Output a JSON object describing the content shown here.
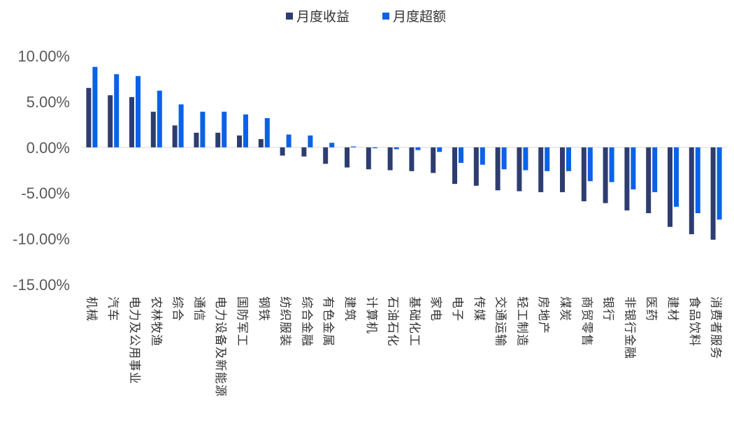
{
  "chart_data": {
    "type": "bar",
    "title": "",
    "xlabel": "",
    "ylabel": "",
    "legend_position": "top-center",
    "grid": false,
    "ylim": [
      -0.15,
      0.1
    ],
    "yticks": [
      0.1,
      0.05,
      0.0,
      -0.05,
      -0.1,
      -0.15
    ],
    "yticklabels": [
      "10.00%",
      "5.00%",
      "0.00%",
      "-5.00%",
      "-10.00%",
      "-15.00%"
    ],
    "categories": [
      "机械",
      "汽车",
      "电力及公用事业",
      "农林牧渔",
      "综合",
      "通信",
      "电力设备及新能源",
      "国防军工",
      "钢铁",
      "纺织服装",
      "综合金融",
      "有色金属",
      "建筑",
      "计算机",
      "石油石化",
      "基础化工",
      "家电",
      "电子",
      "传媒",
      "交通运输",
      "轻工制造",
      "房地产",
      "煤炭",
      "商贸零售",
      "银行",
      "非银行金融",
      "医药",
      "建材",
      "食品饮料",
      "消费者服务"
    ],
    "series": [
      {
        "name": "月度收益",
        "color": "#2e3d70",
        "values": [
          0.065,
          0.057,
          0.055,
          0.039,
          0.024,
          0.016,
          0.016,
          0.013,
          0.009,
          -0.009,
          -0.01,
          -0.018,
          -0.022,
          -0.024,
          -0.025,
          -0.026,
          -0.028,
          -0.04,
          -0.042,
          -0.047,
          -0.048,
          -0.049,
          -0.049,
          -0.059,
          -0.061,
          -0.069,
          -0.072,
          -0.087,
          -0.095,
          -0.101
        ]
      },
      {
        "name": "月度超额",
        "color": "#0b62e6",
        "values": [
          0.088,
          0.08,
          0.078,
          0.062,
          0.047,
          0.039,
          0.039,
          0.036,
          0.032,
          0.014,
          0.013,
          0.005,
          0.001,
          -0.001,
          -0.002,
          -0.003,
          -0.005,
          -0.017,
          -0.019,
          -0.024,
          -0.025,
          -0.026,
          -0.026,
          -0.037,
          -0.038,
          -0.046,
          -0.049,
          -0.065,
          -0.072,
          -0.079
        ]
      }
    ]
  }
}
